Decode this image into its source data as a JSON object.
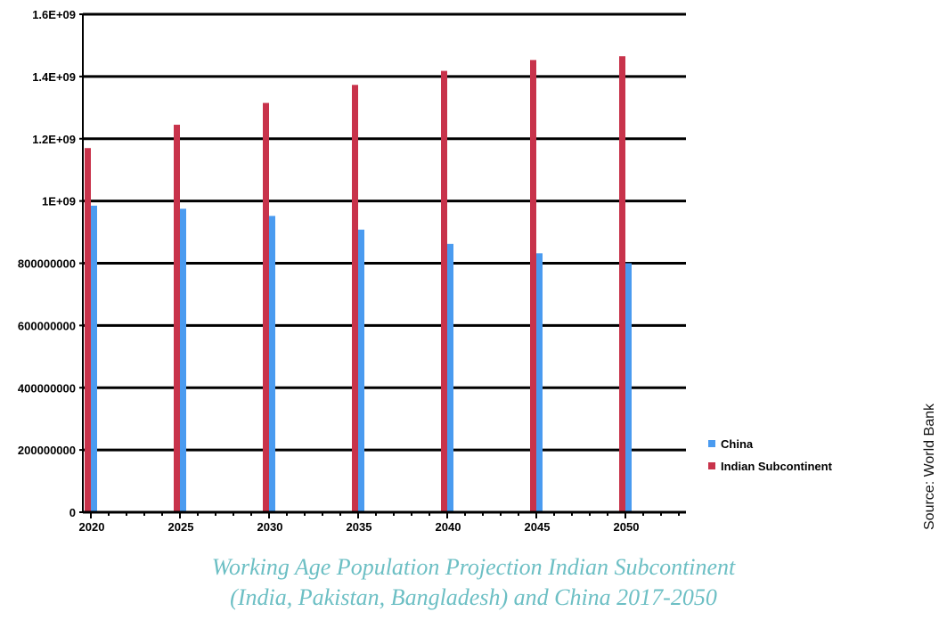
{
  "chart_data": {
    "type": "bar",
    "categories": [
      "2020",
      "2025",
      "2030",
      "2035",
      "2040",
      "2045",
      "2050"
    ],
    "series": [
      {
        "name": "Indian Subcontinent",
        "color": "#c8334b",
        "values": [
          1170000000,
          1245000000,
          1315000000,
          1373000000,
          1418000000,
          1453000000,
          1465000000
        ]
      },
      {
        "name": "China",
        "color": "#4a9bf0",
        "values": [
          985000000,
          975000000,
          952000000,
          908000000,
          862000000,
          832000000,
          800000000
        ]
      }
    ],
    "ylim": [
      0,
      1600000000
    ],
    "yticks": [
      0,
      200000000,
      400000000,
      600000000,
      800000000,
      1000000000,
      1200000000,
      1400000000,
      1600000000
    ],
    "ytick_labels": [
      "0",
      "200000000",
      "400000000",
      "600000000",
      "800000000",
      "1E+09",
      "1.2E+09",
      "1.4E+09",
      "1.6E+09"
    ],
    "grid": true,
    "legend_position": "right",
    "legend_order": [
      "China",
      "Indian Subcontinent"
    ],
    "xlabel": "",
    "ylabel": ""
  },
  "caption": {
    "line1": "Working Age Population Projection Indian Subcontinent",
    "line2": "(India, Pakistan, Bangladesh) and China 2017-2050"
  },
  "source": "Source: World Bank"
}
